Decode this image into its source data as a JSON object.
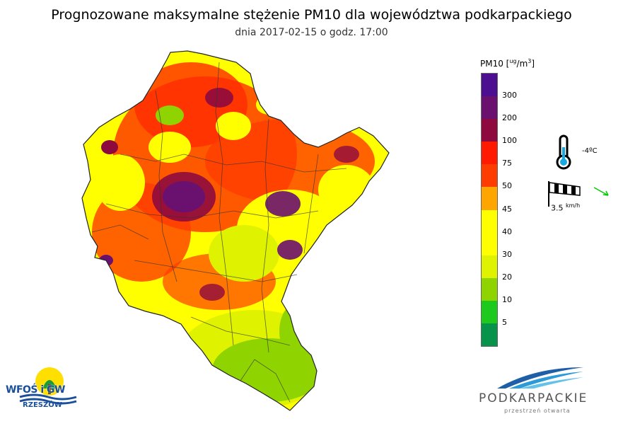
{
  "title": "Prognozowane maksymalne stężenie PM10 dla województwa podkarpackiego",
  "subtitle": "dnia 2017-02-15 o godz. 17:00",
  "legend": {
    "label": "PM10",
    "unit": "[ug/m3]",
    "unit_parts": {
      "num": "ug",
      "den": "m",
      "exp": "3"
    },
    "ticks": [
      "300",
      "200",
      "100",
      "75",
      "50",
      "45",
      "40",
      "30",
      "20",
      "10",
      "5"
    ],
    "colors": [
      "#4b0f8f",
      "#6a1170",
      "#8e0a3e",
      "#ff1a00",
      "#ff3c00",
      "#ffa500",
      "#ffff00",
      "#ffff00",
      "#dff200",
      "#8fd400",
      "#1ec91e",
      "#08934a"
    ]
  },
  "weather": {
    "temperature": "-4ºC",
    "wind_speed": "3.5",
    "wind_unit": "km/h",
    "wind_arrow_color": "#00cc00"
  },
  "logos": {
    "wfos_main": "WFOŚ i GW",
    "wfos_city": "RZESZÓW",
    "region_name": "PODKARPACKIE",
    "region_tagline": "przestrzeń otwarta"
  }
}
